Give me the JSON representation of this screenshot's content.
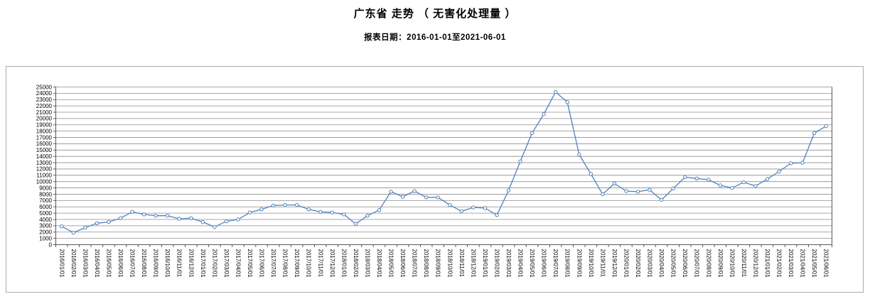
{
  "header": {
    "title": "广东省 走势 （ 无害化处理量 ）",
    "subtitle": "报表日期：2016-01-01至2021-06-01"
  },
  "chart_data": {
    "type": "line",
    "title": "广东省 走势 （ 无害化处理量 ）",
    "xlabel": "",
    "ylabel": "",
    "ylim": [
      0,
      25000
    ],
    "ytick_step": 1000,
    "grid": true,
    "legend_position": "none",
    "x_label_rotation": 90,
    "line_color": "#4f81bd",
    "marker": "circle-open",
    "gridline_color": "#8e8e8e",
    "axis_color": "#595959",
    "x": [
      "2016/01/01",
      "2016/02/01",
      "2016/03/01",
      "2016/04/01",
      "2016/05/01",
      "2016/06/01",
      "2016/07/01",
      "2016/08/01",
      "2016/09/01",
      "2016/10/01",
      "2016/11/01",
      "2016/12/01",
      "2017/01/01",
      "2017/02/01",
      "2017/03/01",
      "2017/04/01",
      "2017/05/01",
      "2017/06/01",
      "2017/07/01",
      "2017/08/01",
      "2017/09/01",
      "2017/10/01",
      "2017/11/01",
      "2017/12/01",
      "2018/01/01",
      "2018/02/01",
      "2018/03/01",
      "2018/04/01",
      "2018/05/01",
      "2018/06/01",
      "2018/07/01",
      "2018/08/01",
      "2018/09/01",
      "2018/10/01",
      "2018/11/01",
      "2018/12/01",
      "2019/01/01",
      "2019/02/01",
      "2019/03/01",
      "2019/04/01",
      "2019/05/01",
      "2019/06/01",
      "2019/07/01",
      "2019/08/01",
      "2019/09/01",
      "2019/10/01",
      "2019/11/01",
      "2019/12/01",
      "2020/01/01",
      "2020/02/01",
      "2020/03/01",
      "2020/04/01",
      "2020/05/01",
      "2020/06/01",
      "2020/07/01",
      "2020/08/01",
      "2020/09/01",
      "2020/10/01",
      "2020/11/01",
      "2020/12/01",
      "2021/01/01",
      "2021/02/01",
      "2021/03/01",
      "2021/04/01",
      "2021/05/01",
      "2021/06/01"
    ],
    "series": [
      {
        "name": "无害化处理量",
        "values": [
          2900,
          1900,
          2700,
          3400,
          3600,
          4200,
          5200,
          4800,
          4600,
          4600,
          4100,
          4200,
          3600,
          2800,
          3700,
          4000,
          5100,
          5600,
          6200,
          6300,
          6300,
          5600,
          5200,
          5100,
          4800,
          3300,
          4600,
          5500,
          8400,
          7600,
          8500,
          7500,
          7500,
          6300,
          5300,
          5900,
          5800,
          4700,
          8600,
          13200,
          17700,
          20700,
          24200,
          22600,
          14300,
          11200,
          8000,
          9700,
          8500,
          8400,
          8700,
          7100,
          8900,
          10700,
          10500,
          10300,
          9400,
          9000,
          9900,
          9300,
          10400,
          11600,
          12900,
          13000,
          17700,
          18800
        ]
      }
    ]
  }
}
